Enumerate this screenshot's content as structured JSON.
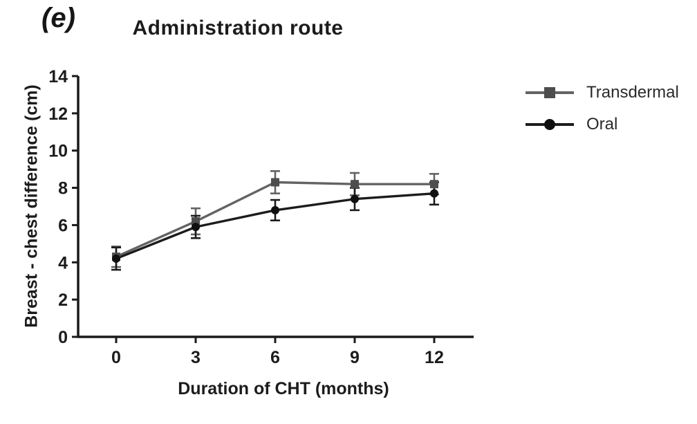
{
  "panel_label": "(e)",
  "chart_data": {
    "type": "line",
    "title": "Administration route",
    "xlabel": "Duration of CHT (months)",
    "ylabel": "Breast - chest difference (cm)",
    "x": [
      0,
      3,
      6,
      9,
      12
    ],
    "xticks": [
      "0",
      "3",
      "6",
      "9",
      "12"
    ],
    "yticks": [
      "0",
      "2",
      "4",
      "6",
      "8",
      "10",
      "12",
      "14"
    ],
    "ylim": [
      0,
      14
    ],
    "xlim": [
      -1.4,
      13.5
    ],
    "grid": false,
    "error_bars": true,
    "legend_position": "right-of-plot",
    "axis_color": "#1a1a1a",
    "series": [
      {
        "name": "Transdermal",
        "marker": "square",
        "line_color": "#636363",
        "marker_color": "#4d4d4d",
        "values": [
          4.3,
          6.2,
          8.3,
          8.2,
          8.2
        ],
        "errors": [
          0.55,
          0.7,
          0.6,
          0.6,
          0.55
        ]
      },
      {
        "name": "Oral",
        "marker": "circle",
        "line_color": "#1c1c1c",
        "marker_color": "#101010",
        "values": [
          4.2,
          5.9,
          6.8,
          7.4,
          7.7
        ],
        "errors": [
          0.6,
          0.6,
          0.55,
          0.6,
          0.6
        ]
      }
    ]
  }
}
